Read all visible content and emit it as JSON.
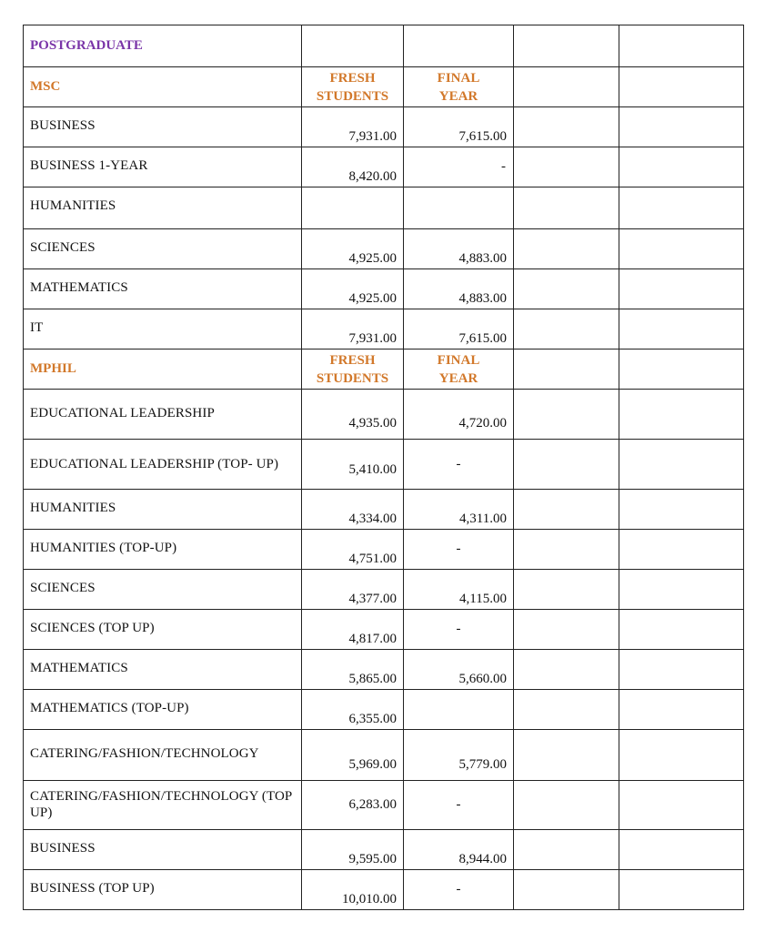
{
  "title": "POSTGRADUATE",
  "col_fresh": [
    "FRESH",
    "STUDENTS"
  ],
  "col_final": [
    "FINAL",
    "YEAR"
  ],
  "msc": {
    "label": "MSC",
    "rows": [
      {
        "name": "BUSINESS",
        "fresh": "7,931.00",
        "final": "7,615.00"
      },
      {
        "name": "BUSINESS 1-YEAR",
        "fresh": "8,420.00",
        "final": "-"
      },
      {
        "name": "HUMANITIES",
        "fresh": "",
        "final": ""
      },
      {
        "name": "SCIENCES",
        "fresh": "4,925.00",
        "final": "4,883.00"
      },
      {
        "name": "MATHEMATICS",
        "fresh": "4,925.00",
        "final": "4,883.00"
      },
      {
        "name": "IT",
        "fresh": "7,931.00",
        "final": "7,615.00"
      }
    ]
  },
  "mphil": {
    "label": "MPHIL",
    "rows": [
      {
        "name": "EDUCATIONAL LEADERSHIP",
        "fresh": "4,935.00",
        "final": "4,720.00"
      },
      {
        "name": "EDUCATIONAL LEADERSHIP (TOP- UP)",
        "fresh": "5,410.00",
        "final": "-"
      },
      {
        "name": "HUMANITIES",
        "fresh": "4,334.00",
        "final": "4,311.00"
      },
      {
        "name": "HUMANITIES (TOP-UP)",
        "fresh": "4,751.00",
        "final": "-"
      },
      {
        "name": "SCIENCES",
        "fresh": "4,377.00",
        "final": "4,115.00"
      },
      {
        "name": "SCIENCES (TOP UP)",
        "fresh": "4,817.00",
        "final": "-"
      },
      {
        "name": "MATHEMATICS",
        "fresh": "5,865.00",
        "final": "5,660.00"
      },
      {
        "name": "MATHEMATICS (TOP-UP)",
        "fresh": "6,355.00",
        "final": ""
      },
      {
        "name": "CATERING/FASHION/TECHNOLOGY",
        "fresh": "5,969.00",
        "final": "5,779.00"
      },
      {
        "name": "CATERING/FASHION/TECHNOLOGY (TOP UP)",
        "fresh": "6,283.00",
        "final": "-"
      },
      {
        "name": "BUSINESS",
        "fresh": "9,595.00",
        "final": "8,944.00"
      },
      {
        "name": "BUSINESS (TOP UP)",
        "fresh": "10,010.00",
        "final": "-"
      }
    ]
  }
}
